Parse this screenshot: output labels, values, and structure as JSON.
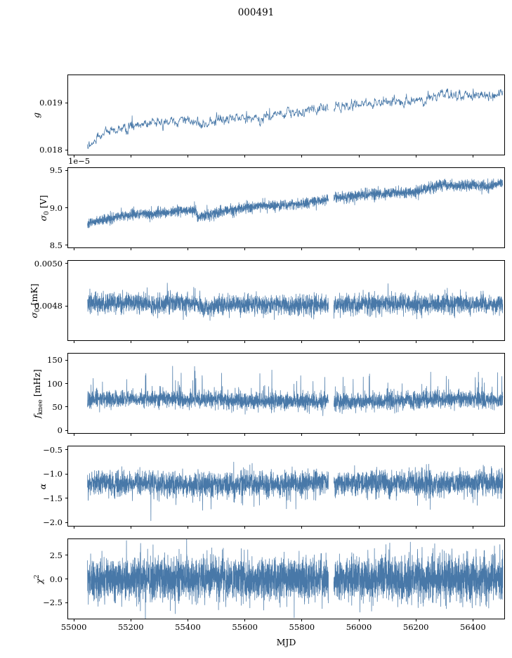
{
  "figure": {
    "title": "000491"
  },
  "chart_data": {
    "type": "line",
    "title": "000491",
    "xlabel": "MJD",
    "line_color": "#4878a8",
    "spine_color": "#000000",
    "background": "#ffffff",
    "legend": "none",
    "grid": false,
    "x_range": [
      54980,
      56510
    ],
    "x_data_range": [
      55048,
      56505
    ],
    "x_ticks": [
      {
        "v": 55000,
        "label": "55000"
      },
      {
        "v": 55200,
        "label": "55200"
      },
      {
        "v": 55400,
        "label": "55400"
      },
      {
        "v": 55600,
        "label": "55600"
      },
      {
        "v": 55800,
        "label": "55800"
      },
      {
        "v": 56000,
        "label": "56000"
      },
      {
        "v": 56200,
        "label": "56200"
      },
      {
        "v": 56400,
        "label": "56400"
      }
    ],
    "gap": [
      55893,
      55912
    ],
    "panels": [
      {
        "name": "g",
        "ylabel_text": "g",
        "ylabel_parts": [
          [
            "i",
            "g"
          ]
        ],
        "ylim": [
          0.0179,
          0.01958
        ],
        "yticks": [
          {
            "v": 0.019,
            "label": "0.019"
          },
          {
            "v": 0.018,
            "label": "0.018"
          }
        ],
        "trend": [
          [
            55048,
            0.01808
          ],
          [
            55080,
            0.01826
          ],
          [
            55120,
            0.01839
          ],
          [
            55160,
            0.01846
          ],
          [
            55200,
            0.01851
          ],
          [
            55250,
            0.01856
          ],
          [
            55300,
            0.01859
          ],
          [
            55350,
            0.01858
          ],
          [
            55420,
            0.01861
          ],
          [
            55460,
            0.01855
          ],
          [
            55520,
            0.01866
          ],
          [
            55560,
            0.01868
          ],
          [
            55600,
            0.01871
          ],
          [
            55650,
            0.01869
          ],
          [
            55700,
            0.01874
          ],
          [
            55750,
            0.01877
          ],
          [
            55800,
            0.01881
          ],
          [
            55850,
            0.01886
          ],
          [
            55900,
            0.0189
          ],
          [
            55950,
            0.01893
          ],
          [
            56000,
            0.01897
          ],
          [
            56050,
            0.01899
          ],
          [
            56100,
            0.01901
          ],
          [
            56150,
            0.01903
          ],
          [
            56200,
            0.01907
          ],
          [
            56250,
            0.01911
          ],
          [
            56290,
            0.01919
          ],
          [
            56350,
            0.01912
          ],
          [
            56400,
            0.01917
          ],
          [
            56450,
            0.01914
          ],
          [
            56505,
            0.01919
          ]
        ],
        "noise": 0.00012,
        "smooth": 2,
        "points": 1500,
        "spikes": {
          "prob": 0.006,
          "amp": 0.00016,
          "sign": 0
        }
      },
      {
        "name": "sigma0-V",
        "ylabel_text": "σ0 [V]",
        "ylabel_parts": [
          [
            "i",
            "σ"
          ],
          [
            "sub",
            "0"
          ],
          [
            "n",
            " [V]"
          ]
        ],
        "offset_text": "1e−5",
        "ylim": [
          8.47,
          9.53
        ],
        "yticks": [
          {
            "v": 9.5,
            "label": "9.5"
          },
          {
            "v": 9.0,
            "label": "9.0"
          },
          {
            "v": 8.5,
            "label": "8.5"
          }
        ],
        "trend": [
          [
            55048,
            8.78
          ],
          [
            55100,
            8.83
          ],
          [
            55150,
            8.87
          ],
          [
            55200,
            8.9
          ],
          [
            55250,
            8.92
          ],
          [
            55300,
            8.93
          ],
          [
            55350,
            8.95
          ],
          [
            55420,
            8.97
          ],
          [
            55428,
            8.99
          ],
          [
            55433,
            8.87
          ],
          [
            55500,
            8.93
          ],
          [
            55550,
            8.97
          ],
          [
            55600,
            9.0
          ],
          [
            55650,
            9.02
          ],
          [
            55700,
            9.03
          ],
          [
            55750,
            9.04
          ],
          [
            55800,
            9.06
          ],
          [
            55850,
            9.09
          ],
          [
            55900,
            9.12
          ],
          [
            55950,
            9.15
          ],
          [
            56000,
            9.17
          ],
          [
            56050,
            9.18
          ],
          [
            56100,
            9.2
          ],
          [
            56150,
            9.2
          ],
          [
            56200,
            9.22
          ],
          [
            56250,
            9.27
          ],
          [
            56300,
            9.31
          ],
          [
            56350,
            9.28
          ],
          [
            56400,
            9.31
          ],
          [
            56450,
            9.28
          ],
          [
            56505,
            9.33
          ]
        ],
        "noise": 0.035,
        "smooth": 0,
        "points": 3500,
        "spikes": {
          "prob": 0.004,
          "amp": 0.09,
          "sign": 0
        }
      },
      {
        "name": "sigma0-mK",
        "ylabel_text": "σ0 [mK]",
        "ylabel_parts": [
          [
            "i",
            "σ"
          ],
          [
            "sub",
            "0"
          ],
          [
            "n",
            " [mK]"
          ]
        ],
        "ylim": [
          0.00464,
          0.005012
        ],
        "yticks": [
          {
            "v": 0.005,
            "label": "0.0050"
          },
          {
            "v": 0.0048,
            "label": "0.0048"
          }
        ],
        "trend": [
          [
            55048,
            0.004815
          ],
          [
            55250,
            0.004813
          ],
          [
            55280,
            0.004801
          ],
          [
            55320,
            0.004813
          ],
          [
            55420,
            0.004811
          ],
          [
            55455,
            0.004791
          ],
          [
            55490,
            0.004802
          ],
          [
            55550,
            0.004806
          ],
          [
            55650,
            0.004809
          ],
          [
            55900,
            0.004808
          ],
          [
            56100,
            0.00481
          ],
          [
            56300,
            0.004809
          ],
          [
            56505,
            0.004812
          ]
        ],
        "noise": 2.3e-05,
        "smooth": 0,
        "points": 3500,
        "spikes": {
          "prob": 0.007,
          "amp": 7e-05,
          "sign": 0
        }
      },
      {
        "name": "fknee",
        "ylabel_text": "f_knee [mHz]",
        "ylabel_parts": [
          [
            "i",
            "f"
          ],
          [
            "sub",
            "knee"
          ],
          [
            "n",
            " [mHz]"
          ]
        ],
        "ylim": [
          -6,
          164
        ],
        "yticks": [
          {
            "v": 150,
            "label": "150"
          },
          {
            "v": 100,
            "label": "100"
          },
          {
            "v": 50,
            "label": "50"
          },
          {
            "v": 0,
            "label": "0"
          }
        ],
        "trend": [
          [
            55048,
            66
          ],
          [
            55300,
            68
          ],
          [
            55500,
            64
          ],
          [
            55700,
            62
          ],
          [
            55900,
            60
          ],
          [
            56100,
            63
          ],
          [
            56300,
            66
          ],
          [
            56505,
            65
          ]
        ],
        "noise": 9,
        "smooth": 0,
        "points": 3500,
        "spikes": {
          "prob": 0.013,
          "amp": 62,
          "sign": 1
        }
      },
      {
        "name": "alpha",
        "ylabel_text": "α",
        "ylabel_parts": [
          [
            "i",
            "α"
          ]
        ],
        "ylim": [
          -2.07,
          -0.43
        ],
        "yticks": [
          {
            "v": -0.5,
            "label": "−0.5"
          },
          {
            "v": -1.0,
            "label": "−1.0"
          },
          {
            "v": -1.5,
            "label": "−1.5"
          },
          {
            "v": -2.0,
            "label": "−2.0"
          }
        ],
        "trend": [
          [
            55048,
            -1.18
          ],
          [
            55450,
            -1.22
          ],
          [
            55700,
            -1.2
          ],
          [
            55900,
            -1.17
          ],
          [
            56000,
            -1.2
          ],
          [
            56300,
            -1.19
          ],
          [
            56505,
            -1.18
          ]
        ],
        "noise": 0.13,
        "smooth": 0,
        "points": 3500,
        "spikes": {
          "prob": 0.01,
          "amp": 0.5,
          "sign": -1
        }
      },
      {
        "name": "chi2",
        "ylabel_text": "χ²",
        "ylabel_parts": [
          [
            "i",
            "χ"
          ],
          [
            "sup",
            "2"
          ]
        ],
        "ylim": [
          -4.2,
          4.2
        ],
        "yticks": [
          {
            "v": 2.5,
            "label": "2.5"
          },
          {
            "v": 0.0,
            "label": "0.0"
          },
          {
            "v": -2.5,
            "label": "−2.5"
          }
        ],
        "trend": [
          [
            55048,
            0.0
          ],
          [
            55800,
            0.05
          ],
          [
            56505,
            0.0
          ]
        ],
        "noise": 1.15,
        "smooth": 0,
        "points": 4500,
        "spikes": {
          "prob": 0.008,
          "amp": 1.1,
          "sign": 0
        }
      }
    ]
  }
}
